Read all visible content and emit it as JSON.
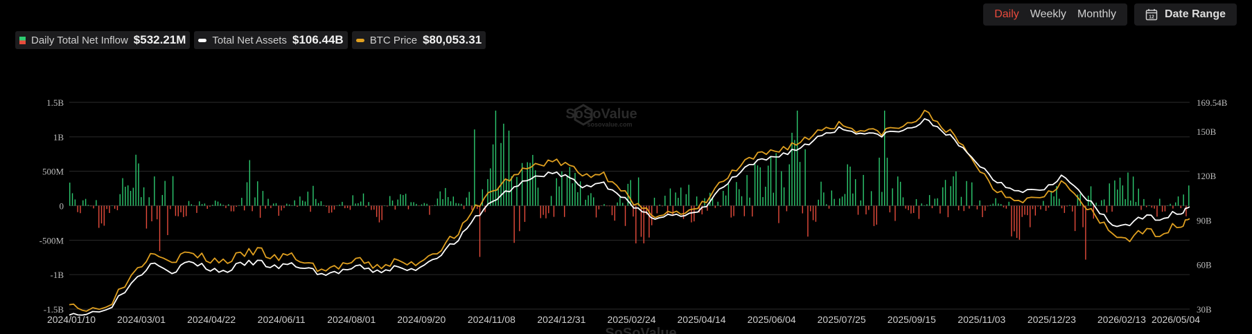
{
  "controls": {
    "periods": [
      "Daily",
      "Weekly",
      "Monthly"
    ],
    "active_period": "Daily",
    "date_range_label": "Date Range",
    "calendar_icon": "calendar-icon"
  },
  "legend": {
    "inflow": {
      "label": "Daily Total Net Inflow",
      "value": "$532.21M"
    },
    "assets": {
      "label": "Total Net Assets",
      "value": "$106.44B"
    },
    "btc": {
      "label": "BTC Price",
      "value": "$80,053.31"
    }
  },
  "watermark": {
    "brand": "SoSoValue",
    "sub": "sosovalue.com"
  },
  "colors": {
    "inflow_positive": "#2ecc71",
    "inflow_negative": "#e74c3c",
    "assets_line": "#ffffff",
    "btc_line": "#e0a020",
    "active_tab": "#e84a3c"
  },
  "chart_data": {
    "type": "bar+line",
    "x_tick_labels": [
      "2024/01/10",
      "2024/03/01",
      "2024/04/22",
      "2024/06/11",
      "2024/08/01",
      "2024/09/20",
      "2024/11/08",
      "2024/12/31",
      "2025/02/24",
      "2025/04/14",
      "2025/06/04",
      "2025/07/25",
      "2025/09/15",
      "2025/11/03",
      "2025/12/23",
      "2026/02/13",
      "2026/05/04"
    ],
    "y_left": {
      "ticks": [
        "1.5B",
        "1B",
        "500M",
        "0",
        "-500M",
        "-1B",
        "-1.5B"
      ],
      "range": [
        -1.5,
        1.5
      ],
      "unit": "B USD"
    },
    "y_right": {
      "ticks": [
        "169.54B",
        "150B",
        "120B",
        "90B",
        "60B",
        "30B"
      ],
      "values": [
        169.54,
        150,
        120,
        90,
        60,
        30
      ]
    },
    "series": [
      {
        "name": "Daily Total Net Inflow",
        "kind": "bar",
        "anchors_B": [
          0.4,
          0.1,
          -0.3,
          0.2,
          0.5,
          0.6,
          0.3,
          0.4,
          -0.2,
          0.1,
          -0.1,
          0.2,
          0.3,
          -0.2,
          0.1,
          0.2,
          -0.1,
          0.1,
          0.2,
          -0.2,
          0.3,
          0.1,
          -0.1,
          0.2,
          0.1,
          0.4,
          0.6,
          0.9,
          0.5,
          0.7,
          0.3,
          0.5,
          -0.3,
          0.1,
          -0.4,
          -0.6,
          -0.2,
          0.3,
          0.4,
          0.2,
          0.1,
          0.3,
          0.6,
          0.5,
          0.7,
          0.8,
          0.4,
          -0.2,
          0.5,
          0.3,
          0.6,
          0.4,
          -0.3,
          0.2,
          0.3,
          0.5,
          -0.2,
          0.1,
          -0.3,
          -0.4,
          0.2,
          0.3,
          -0.3,
          -0.2,
          0.3,
          0.4,
          0.2,
          -0.2,
          0.1,
          0.3
        ]
      },
      {
        "name": "Total Net Assets",
        "kind": "line",
        "points": [
          [
            0,
            28
          ],
          [
            2,
            26
          ],
          [
            5,
            33
          ],
          [
            8,
            52
          ],
          [
            10,
            63
          ],
          [
            12,
            55
          ],
          [
            14,
            62
          ],
          [
            16,
            58
          ],
          [
            18,
            55
          ],
          [
            20,
            60
          ],
          [
            22,
            62
          ],
          [
            24,
            58
          ],
          [
            26,
            60
          ],
          [
            28,
            57
          ],
          [
            30,
            53
          ],
          [
            32,
            56
          ],
          [
            34,
            58
          ],
          [
            36,
            55
          ],
          [
            38,
            58
          ],
          [
            40,
            56
          ],
          [
            42,
            62
          ],
          [
            44,
            70
          ],
          [
            46,
            80
          ],
          [
            48,
            95
          ],
          [
            50,
            105
          ],
          [
            52,
            112
          ],
          [
            54,
            118
          ],
          [
            56,
            122
          ],
          [
            58,
            120
          ],
          [
            60,
            112
          ],
          [
            62,
            116
          ],
          [
            64,
            110
          ],
          [
            66,
            98
          ],
          [
            68,
            92
          ],
          [
            70,
            94
          ],
          [
            72,
            92
          ],
          [
            74,
            97
          ],
          [
            76,
            110
          ],
          [
            78,
            120
          ],
          [
            80,
            128
          ],
          [
            82,
            132
          ],
          [
            84,
            136
          ],
          [
            86,
            140
          ],
          [
            88,
            148
          ],
          [
            90,
            152
          ],
          [
            92,
            150
          ],
          [
            94,
            147
          ],
          [
            96,
            149
          ],
          [
            98,
            151
          ],
          [
            100,
            157
          ],
          [
            102,
            152
          ],
          [
            104,
            140
          ],
          [
            106,
            130
          ],
          [
            108,
            118
          ],
          [
            110,
            112
          ],
          [
            112,
            110
          ],
          [
            114,
            112
          ],
          [
            116,
            120
          ],
          [
            118,
            110
          ],
          [
            120,
            98
          ],
          [
            122,
            86
          ],
          [
            124,
            88
          ],
          [
            126,
            92
          ],
          [
            128,
            92
          ],
          [
            130,
            96
          ],
          [
            131,
            99
          ]
        ]
      },
      {
        "name": "BTC Price",
        "kind": "line",
        "points": [
          [
            0,
            36
          ],
          [
            2,
            28
          ],
          [
            5,
            36
          ],
          [
            8,
            58
          ],
          [
            10,
            70
          ],
          [
            12,
            63
          ],
          [
            14,
            68
          ],
          [
            16,
            64
          ],
          [
            18,
            62
          ],
          [
            20,
            66
          ],
          [
            22,
            70
          ],
          [
            24,
            64
          ],
          [
            26,
            66
          ],
          [
            28,
            60
          ],
          [
            30,
            56
          ],
          [
            32,
            60
          ],
          [
            34,
            62
          ],
          [
            36,
            58
          ],
          [
            38,
            62
          ],
          [
            40,
            60
          ],
          [
            42,
            66
          ],
          [
            44,
            74
          ],
          [
            46,
            85
          ],
          [
            48,
            102
          ],
          [
            50,
            112
          ],
          [
            52,
            120
          ],
          [
            54,
            126
          ],
          [
            56,
            130
          ],
          [
            58,
            128
          ],
          [
            60,
            120
          ],
          [
            62,
            122
          ],
          [
            64,
            116
          ],
          [
            66,
            100
          ],
          [
            68,
            94
          ],
          [
            70,
            96
          ],
          [
            72,
            93
          ],
          [
            74,
            100
          ],
          [
            76,
            114
          ],
          [
            78,
            124
          ],
          [
            80,
            132
          ],
          [
            82,
            136
          ],
          [
            84,
            140
          ],
          [
            86,
            144
          ],
          [
            88,
            152
          ],
          [
            90,
            155
          ],
          [
            92,
            152
          ],
          [
            94,
            149
          ],
          [
            96,
            151
          ],
          [
            98,
            154
          ],
          [
            100,
            162
          ],
          [
            102,
            155
          ],
          [
            104,
            142
          ],
          [
            106,
            128
          ],
          [
            108,
            112
          ],
          [
            110,
            106
          ],
          [
            112,
            104
          ],
          [
            114,
            108
          ],
          [
            116,
            116
          ],
          [
            118,
            104
          ],
          [
            120,
            92
          ],
          [
            122,
            80
          ],
          [
            124,
            78
          ],
          [
            126,
            82
          ],
          [
            128,
            82
          ],
          [
            130,
            88
          ],
          [
            131,
            91
          ]
        ]
      }
    ]
  }
}
